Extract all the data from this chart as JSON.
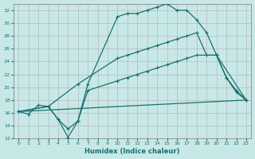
{
  "xlabel": "Humidex (Indice chaleur)",
  "background_color": "#c8e8e8",
  "grid_color": "#aaaaaa",
  "line_color": "#1a7070",
  "xlim": [
    -0.5,
    23.5
  ],
  "ylim": [
    12,
    33
  ],
  "yticks": [
    12,
    14,
    16,
    18,
    20,
    22,
    24,
    26,
    28,
    30,
    32
  ],
  "xticks": [
    0,
    1,
    2,
    3,
    4,
    5,
    6,
    7,
    8,
    9,
    10,
    11,
    12,
    13,
    14,
    15,
    16,
    17,
    18,
    19,
    20,
    21,
    22,
    23
  ],
  "line1_x": [
    0,
    1,
    2,
    3,
    4,
    5,
    6,
    7,
    10,
    11,
    12,
    13,
    14,
    15,
    16,
    17,
    18,
    19,
    20,
    21,
    22,
    23
  ],
  "line1_y": [
    16.2,
    15.8,
    17.2,
    17.0,
    15.0,
    12.2,
    14.7,
    20.5,
    31.0,
    31.5,
    31.5,
    32.0,
    32.5,
    33.0,
    32.0,
    32.0,
    30.5,
    28.5,
    25.0,
    21.5,
    19.5,
    18.0
  ],
  "line2_x": [
    0,
    3,
    6,
    10,
    11,
    12,
    13,
    14,
    15,
    16,
    17,
    18,
    19,
    20,
    21,
    22,
    23
  ],
  "line2_y": [
    16.2,
    17.0,
    20.5,
    24.5,
    25.0,
    25.5,
    26.0,
    26.5,
    27.0,
    27.5,
    28.0,
    28.5,
    25.0,
    25.0,
    21.5,
    19.2,
    18.0
  ],
  "line3_x": [
    0,
    23
  ],
  "line3_y": [
    16.2,
    18.0
  ],
  "line4_x": [
    0,
    3,
    4,
    5,
    6,
    7,
    10,
    11,
    12,
    13,
    14,
    15,
    16,
    17,
    18,
    19,
    20,
    23
  ],
  "line4_y": [
    16.2,
    17.0,
    15.0,
    13.5,
    14.7,
    19.5,
    21.0,
    21.5,
    22.0,
    22.5,
    23.0,
    23.5,
    24.0,
    24.5,
    25.0,
    25.0,
    25.0,
    18.0
  ]
}
